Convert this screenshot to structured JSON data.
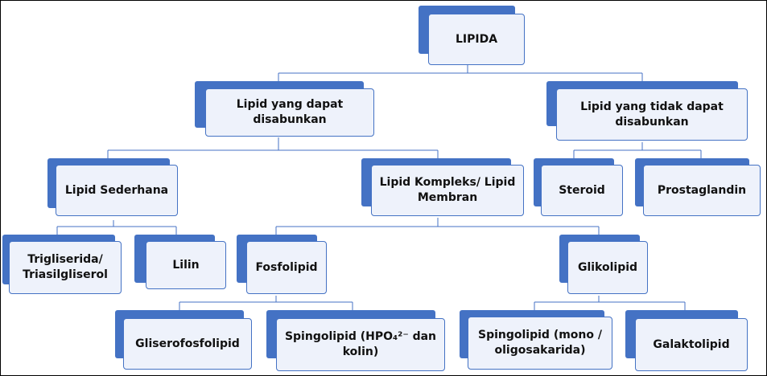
{
  "nodes": {
    "lipida": "LIPIDA",
    "saponifiable": "Lipid yang dapat disabunkan",
    "nonsaponifiable": "Lipid yang tidak dapat disabunkan",
    "simple": "Lipid Sederhana",
    "complex": "Lipid Kompleks/ Lipid Membran",
    "steroid": "Steroid",
    "prostaglandin": "Prostaglandin",
    "trigliserida": "Trigliserida/ Triasilgliserol",
    "lilin": "Lilin",
    "fosfolipid": "Fosfolipid",
    "glikolipid": "Glikolipid",
    "gliserofosfolipid": "Gliserofosfolipid",
    "spingolipid_phosphate": "Spingolipid (HPO₄²⁻ dan kolin)",
    "spingolipid_sugar": "Spingolipid (mono / oligosakarida)",
    "galaktolipid": "Galaktolipid"
  },
  "colors": {
    "accent": "#4472c4",
    "box_fill": "#eef2fb",
    "connector": "#4472c4"
  }
}
